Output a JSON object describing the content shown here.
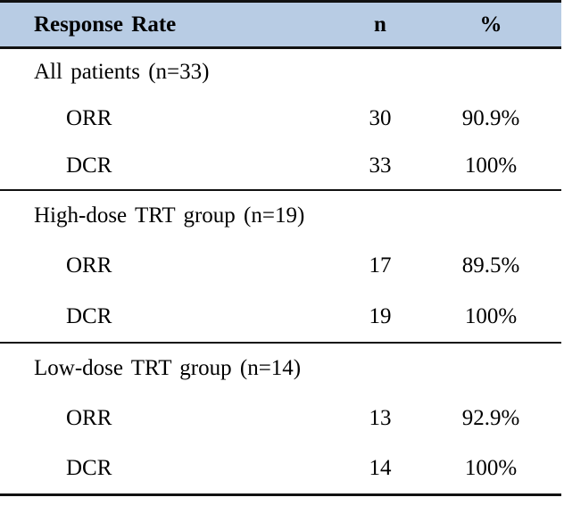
{
  "table": {
    "colors": {
      "header_bg": "#b8cce4",
      "rule_line": "#111111",
      "text": "#000000"
    },
    "header": {
      "label": "Response Rate",
      "n": "n",
      "pct": "%"
    },
    "sections": [
      {
        "title": "All patients (n=33)",
        "rows": [
          {
            "label": "ORR",
            "n": "30",
            "pct": "90.9%"
          },
          {
            "label": "DCR",
            "n": "33",
            "pct": "100%"
          }
        ]
      },
      {
        "title": "High-dose TRT group (n=19)",
        "rows": [
          {
            "label": "ORR",
            "n": "17",
            "pct": "89.5%"
          },
          {
            "label": "DCR",
            "n": "19",
            "pct": "100%"
          }
        ]
      },
      {
        "title": "Low-dose TRT group (n=14)",
        "rows": [
          {
            "label": "ORR",
            "n": "13",
            "pct": "92.9%"
          },
          {
            "label": "DCR",
            "n": "14",
            "pct": "100%"
          }
        ]
      }
    ]
  }
}
